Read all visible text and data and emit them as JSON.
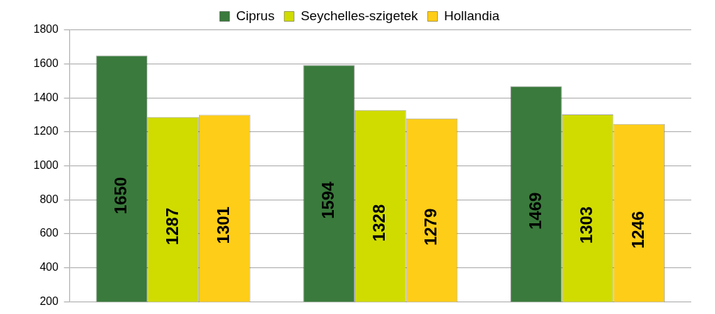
{
  "chart_data": {
    "type": "bar",
    "categories": [
      null,
      null,
      null
    ],
    "series": [
      {
        "name": "Ciprus",
        "color": "#3a7a3c",
        "values": [
          1650,
          1594,
          1469
        ]
      },
      {
        "name": "Seychelles-szigetek",
        "color": "#d0dc00",
        "values": [
          1287,
          1328,
          1303
        ]
      },
      {
        "name": "Hollandia",
        "color": "#fecd17",
        "values": [
          1301,
          1279,
          1246
        ]
      }
    ],
    "ylim": [
      200,
      1800
    ],
    "yticks": [
      200,
      400,
      600,
      800,
      1000,
      1200,
      1400,
      1600,
      1800
    ],
    "grid": "y",
    "legend": "top",
    "data_labels": true,
    "tick_labels": "y"
  }
}
